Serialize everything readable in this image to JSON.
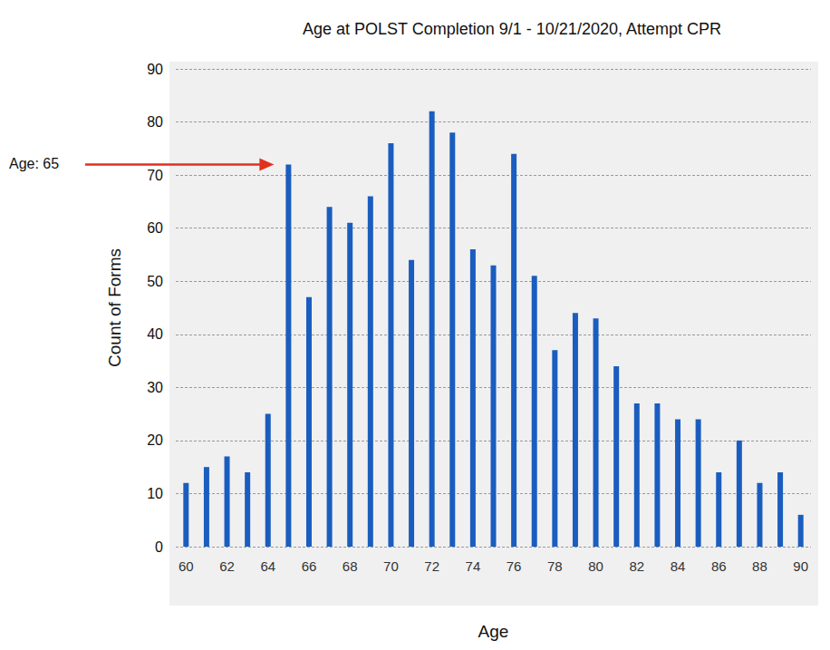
{
  "chart_data": {
    "type": "bar",
    "title": "Age at POLST Completion 9/1 - 10/21/2020, Attempt CPR",
    "x_label": "Age",
    "y_label": "Count of Forms",
    "categories": [
      "60",
      null,
      "62",
      null,
      "64",
      null,
      "66",
      null,
      "68",
      null,
      "70",
      null,
      "72",
      null,
      "74",
      null,
      "76",
      null,
      "78",
      null,
      "80",
      null,
      "82",
      null,
      "84",
      null,
      "86",
      null,
      "88",
      null,
      "90"
    ],
    "values": [
      12,
      15,
      17,
      14,
      25,
      72,
      47,
      64,
      61,
      66,
      76,
      54,
      82,
      78,
      56,
      53,
      74,
      51,
      37,
      44,
      43,
      34,
      27,
      27,
      24,
      24,
      14,
      20,
      12,
      14,
      6
    ],
    "color": "#1a5dbf",
    "ylim": [
      0,
      90
    ],
    "yticks": [
      0,
      10,
      20,
      30,
      40,
      50,
      60,
      70,
      80,
      90
    ],
    "grid": true,
    "annotations": [
      {
        "text": "Age: 65",
        "index": 5,
        "y": 72,
        "color": "#e0301e"
      }
    ]
  }
}
